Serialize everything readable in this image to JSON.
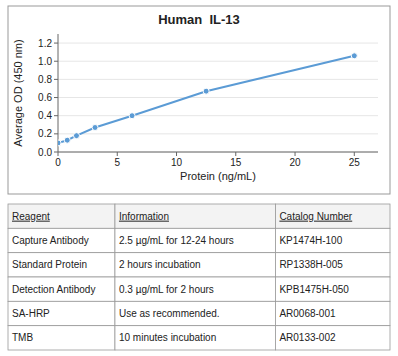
{
  "chart_data": {
    "type": "line",
    "title": "Human  IL-13",
    "x": [
      0,
      0.78,
      1.56,
      3.125,
      6.25,
      12.5,
      25
    ],
    "values": [
      0.1,
      0.13,
      0.18,
      0.27,
      0.4,
      0.67,
      1.06
    ],
    "color": "#5B9BD5",
    "marker": "circle",
    "x_label": "Protein (ng/mL)",
    "y_label": "Average OD (450 nm)",
    "xlim": [
      0,
      27
    ],
    "ylim": [
      0,
      1.3
    ],
    "xticks": [
      0,
      5,
      10,
      15,
      20,
      25
    ],
    "yticks": [
      {
        "value": 0,
        "label": "0.0"
      },
      0.2,
      0.4,
      0.6,
      0.8,
      {
        "value": 1.0,
        "label": "1.0"
      },
      1.2
    ]
  },
  "table": {
    "headers": [
      "Reagent",
      "Information",
      "Catalog Number"
    ],
    "rows": [
      [
        "Capture Antibody",
        "2.5 µg/mL for 12-24 hours",
        "KP1474H-100"
      ],
      [
        "Standard Protein",
        "2 hours incubation",
        "RP1338H-005"
      ],
      [
        "Detection Antibody",
        "0.3 µg/mL for 2 hours",
        "KPB1475H-050"
      ],
      [
        "SA-HRP",
        "Use as recommended.",
        "AR0068-001"
      ],
      [
        "TMB",
        "10 minutes incubation",
        "AR0133-002"
      ]
    ]
  }
}
